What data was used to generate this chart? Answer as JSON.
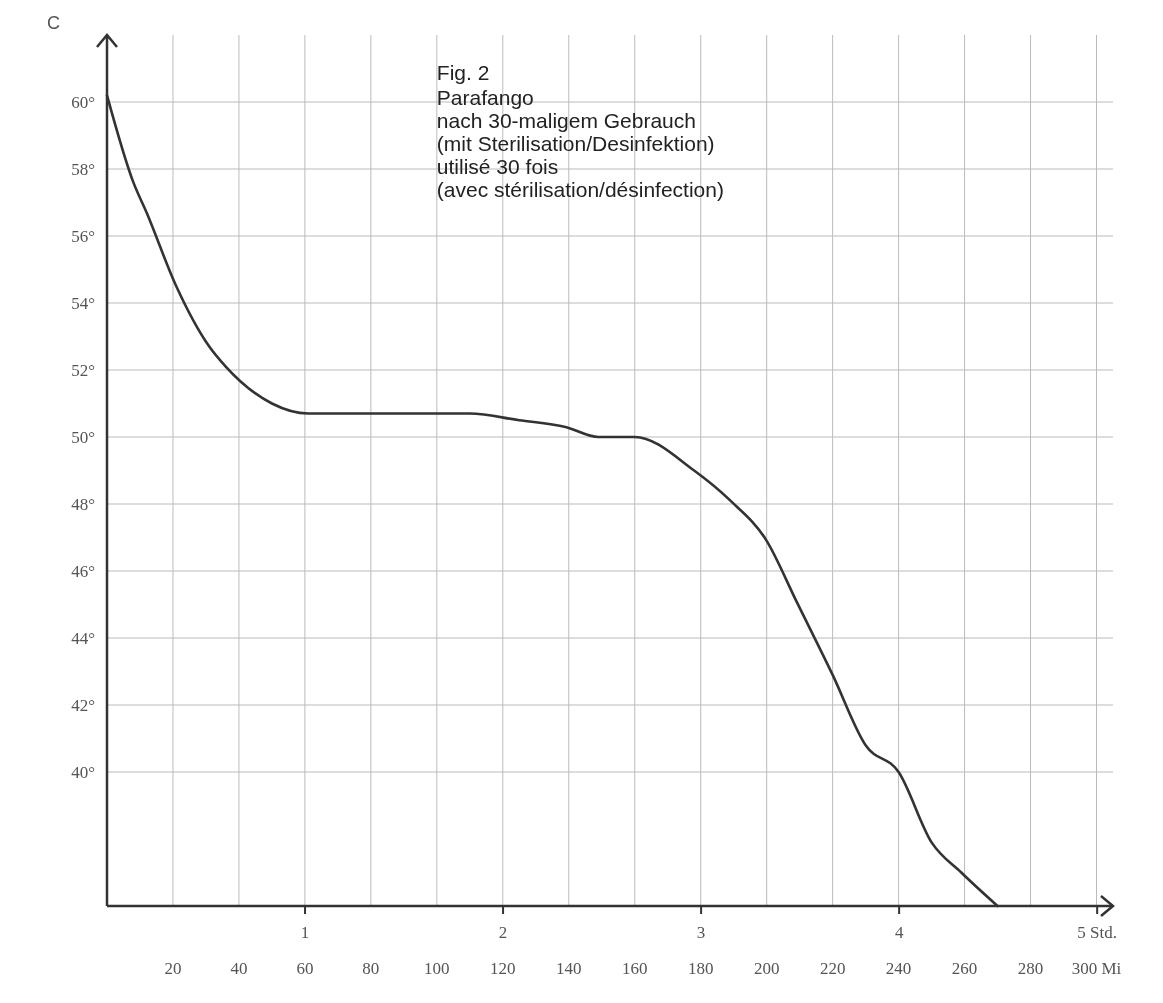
{
  "chart_data": {
    "type": "line",
    "title": "Fig. 2",
    "annotations": [
      "Parafango",
      "nach 30-maligem Gebrauch",
      "(mit Sterilisation/Desinfektion)",
      "utilisé 30 fois",
      "(avec stérilisation/désinfection)"
    ],
    "ylabel": "C",
    "x": [
      0,
      8,
      12,
      21,
      31,
      36,
      50,
      61,
      85,
      110,
      125,
      139,
      149,
      160,
      178,
      189,
      200,
      209,
      220,
      230,
      240,
      250,
      259,
      270
    ],
    "series": [
      {
        "color": "#333333",
        "values": [
          60.2,
          57.6,
          56.7,
          54.5,
          52.7,
          52.1,
          51.0,
          50.7,
          50.7,
          50.7,
          50.5,
          50.3,
          50.0,
          50.0,
          49.0,
          48.1,
          46.9,
          45.1,
          42.9,
          40.8,
          40.0,
          37.9,
          37.0,
          36.0
        ]
      }
    ],
    "xlim": [
      0,
      305
    ],
    "xticks": [
      20,
      40,
      60,
      80,
      100,
      120,
      140,
      160,
      180,
      200,
      220,
      240,
      260,
      280,
      {
        "value": 300,
        "label": "300 Mi"
      }
    ],
    "x2lim": [
      0,
      5.08
    ],
    "x2ticks": [
      1,
      2,
      3,
      4,
      {
        "value": 5,
        "label": "5 Std."
      }
    ],
    "ylim": [
      36,
      62
    ],
    "yticks": [
      {
        "value": 40,
        "label": "40°"
      },
      {
        "value": 42,
        "label": "42°"
      },
      {
        "value": 44,
        "label": "44°"
      },
      {
        "value": 46,
        "label": "46°"
      },
      {
        "value": 48,
        "label": "48°"
      },
      {
        "value": 50,
        "label": "50°"
      },
      {
        "value": 52,
        "label": "52°"
      },
      {
        "value": 54,
        "label": "54°"
      },
      {
        "value": 56,
        "label": "56°"
      },
      {
        "value": 58,
        "label": "58°"
      },
      {
        "value": 60,
        "label": "60°"
      }
    ],
    "grid": true,
    "marker": "none",
    "line_style": "solid"
  }
}
